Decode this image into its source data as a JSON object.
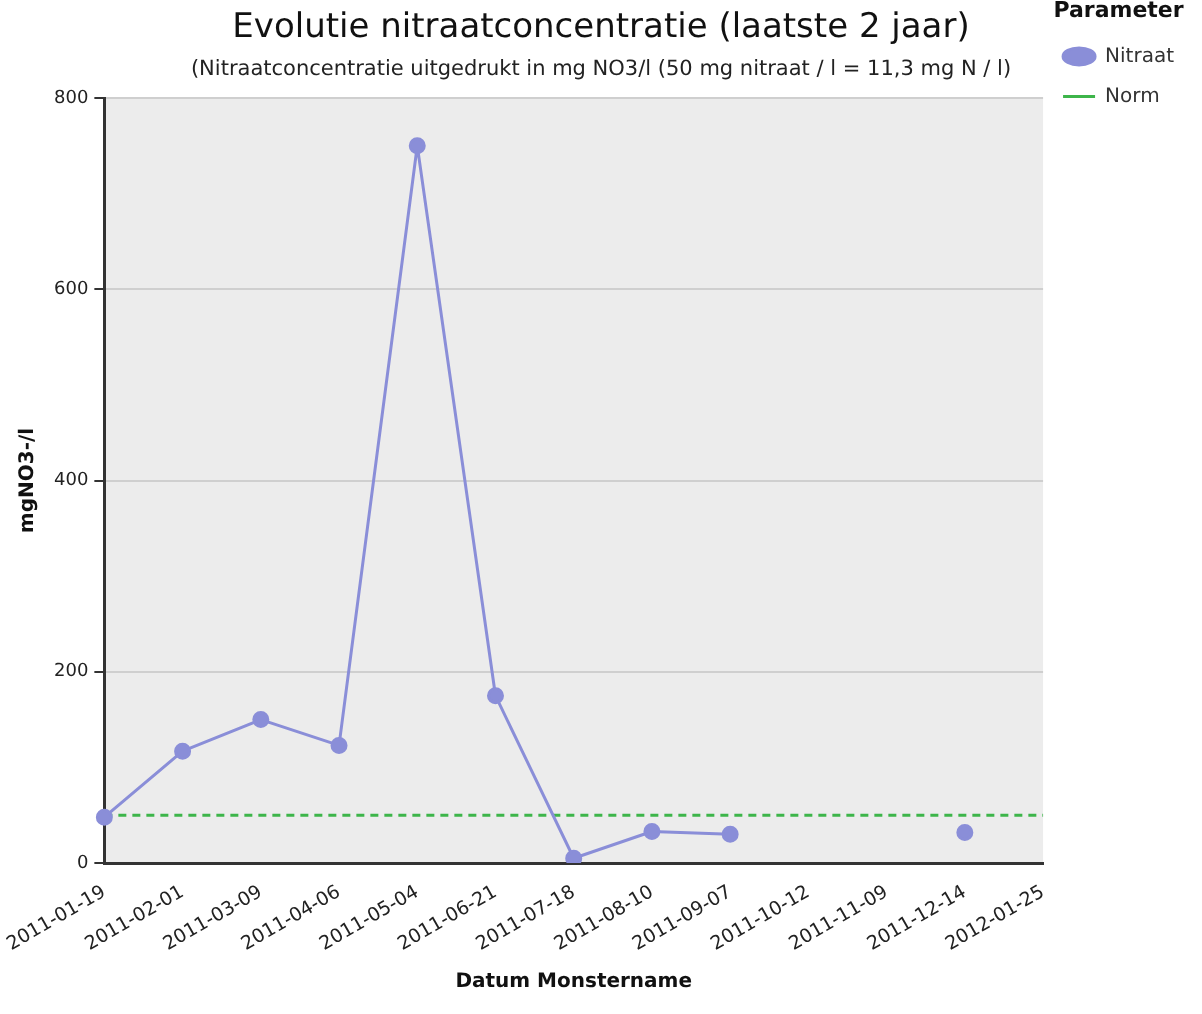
{
  "chart_data": {
    "type": "line",
    "title": "Evolutie nitraatconcentratie (laatste 2 jaar)",
    "subtitle": "(Nitraatconcentratie uitgedrukt in mg NO3/l (50 mg nitraat / l = 11,3 mg N / l)",
    "xlabel": "Datum Monstername",
    "ylabel": "mgNO3-/l",
    "legend_title": "Parameter",
    "categories": [
      "2011-01-19",
      "2011-02-01",
      "2011-03-09",
      "2011-04-06",
      "2011-05-04",
      "2011-06-21",
      "2011-07-18",
      "2011-08-10",
      "2011-09-07",
      "2011-10-12",
      "2011-11-09",
      "2011-12-14",
      "2012-01-25"
    ],
    "series": [
      {
        "name": "Nitraat",
        "color": "#8a8ed8",
        "marker": "circle",
        "line_style": "solid",
        "values": [
          48,
          117,
          150,
          123,
          750,
          175,
          5,
          33,
          30,
          null,
          null,
          32,
          null
        ]
      },
      {
        "name": "Norm",
        "color": "#3db54a",
        "marker": "none",
        "line_style": "dashed",
        "values": [
          50,
          50,
          50,
          50,
          50,
          50,
          50,
          50,
          50,
          50,
          50,
          50,
          50
        ]
      }
    ],
    "ylim": [
      0,
      800
    ],
    "yticks": [
      0,
      200,
      400,
      600,
      800
    ],
    "grid": "y",
    "legend": "top right"
  }
}
